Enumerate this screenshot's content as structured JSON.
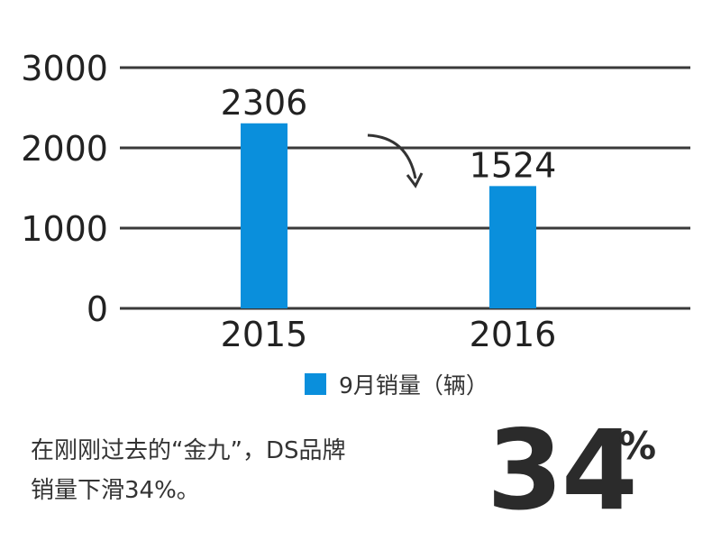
{
  "colors": {
    "bar": "#0a8fdc",
    "axis": "#3a3a3a",
    "text": "#222222"
  },
  "chart_data": {
    "type": "bar",
    "categories": [
      "2015",
      "2016"
    ],
    "series": [
      {
        "name": "9月销量（辆）",
        "values": [
          2306,
          1524
        ]
      }
    ],
    "ylim": [
      0,
      3000
    ],
    "yticks": [
      0,
      1000,
      2000,
      3000
    ],
    "grid": true,
    "legend_position": "bottom",
    "annotation": "downward-arrow"
  },
  "legend_label": "9月销量（辆）",
  "caption": {
    "line1": "在刚刚过去的“金九”，DS品牌",
    "line2": "销量下滑34%。"
  },
  "highlight": {
    "number": "34",
    "unit": "%"
  }
}
